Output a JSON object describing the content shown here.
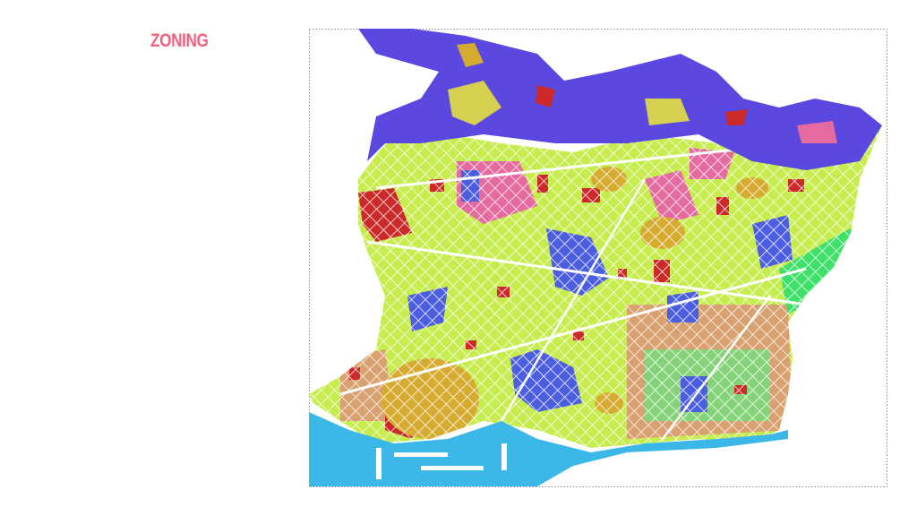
{
  "header": {
    "title": "ZONING"
  }
}
